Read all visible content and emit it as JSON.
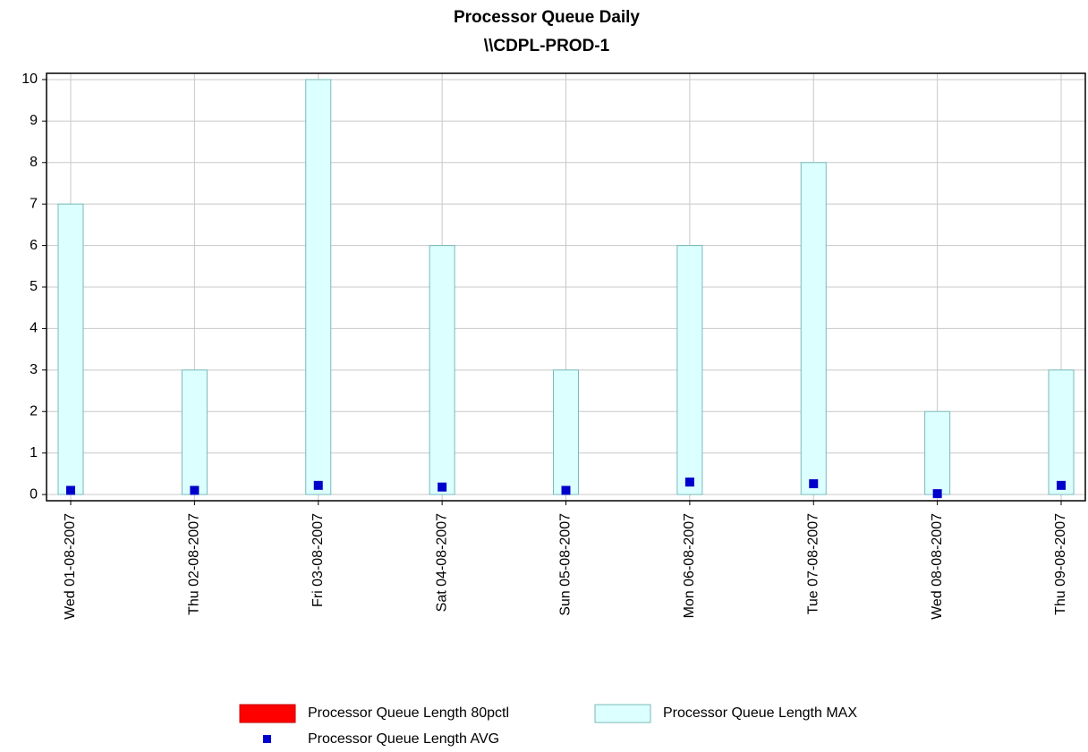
{
  "chart_data": {
    "type": "bar",
    "title": "Processor Queue Daily",
    "subtitle": "\\\\CDPL-PROD-1",
    "categories": [
      "Wed 01-08-2007",
      "Thu 02-08-2007",
      "Fri 03-08-2007",
      "Sat 04-08-2007",
      "Sun 05-08-2007",
      "Mon 06-08-2007",
      "Tue 07-08-2007",
      "Wed 08-08-2007",
      "Thu 09-08-2007"
    ],
    "series": [
      {
        "name": "Processor Queue Length 80pctl",
        "type": "bar",
        "color": "#ff0000",
        "values": [
          0,
          0,
          0,
          0,
          0,
          0,
          0,
          0,
          0
        ]
      },
      {
        "name": "Processor Queue Length MAX",
        "type": "bar",
        "color": "#dcffff",
        "values": [
          7,
          3,
          10,
          6,
          3,
          6,
          8,
          2,
          3
        ]
      },
      {
        "name": "Processor Queue Length AVG",
        "type": "scatter",
        "color": "#0000cc",
        "values": [
          0.1,
          0.1,
          0.22,
          0.18,
          0.1,
          0.3,
          0.26,
          0.02,
          0.22
        ]
      }
    ],
    "ylim": [
      -0.15,
      10.15
    ],
    "yticks": [
      0,
      1,
      2,
      3,
      4,
      5,
      6,
      7,
      8,
      9,
      10
    ],
    "grid": true
  }
}
